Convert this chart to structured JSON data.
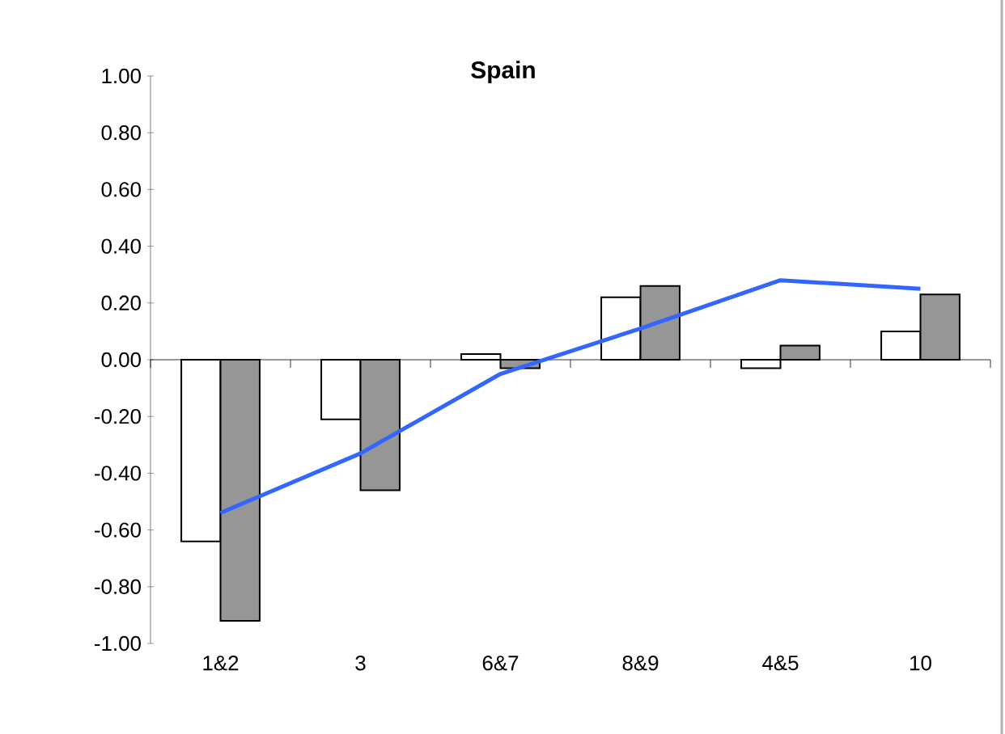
{
  "chart_data": {
    "type": "bar",
    "title": "Spain",
    "categories": [
      "1&2",
      "3",
      "6&7",
      "8&9",
      "4&5",
      "10"
    ],
    "series": [
      {
        "color": "#ffffff",
        "values": [
          -0.64,
          -0.21,
          0.02,
          0.22,
          -0.03,
          0.1
        ]
      },
      {
        "color": "#969696",
        "values": [
          -0.92,
          -0.46,
          -0.03,
          0.26,
          0.05,
          0.23
        ]
      },
      {
        "type": "line",
        "color": "#3366ff",
        "values": [
          -0.54,
          -0.33,
          -0.05,
          0.11,
          0.28,
          0.25
        ]
      }
    ],
    "ylim": [
      -1,
      1
    ],
    "yticks": [
      {
        "value": -1,
        "label": "-1.00"
      },
      {
        "value": -0.8,
        "label": "-0.80"
      },
      {
        "value": -0.6,
        "label": "-0.60"
      },
      {
        "value": -0.4,
        "label": "-0.40"
      },
      {
        "value": -0.2,
        "label": "-0.20"
      },
      {
        "value": 0,
        "label": "0.00"
      },
      {
        "value": 0.2,
        "label": "0.20"
      },
      {
        "value": 0.4,
        "label": "0.40"
      },
      {
        "value": 0.6,
        "label": "0.60"
      },
      {
        "value": 0.8,
        "label": "0.80"
      },
      {
        "value": 1,
        "label": "1.00"
      }
    ]
  }
}
